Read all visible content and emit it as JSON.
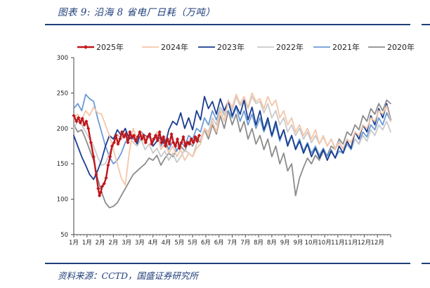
{
  "figure": {
    "title": "图表 9:  沿海 8 省电厂日耗（万吨）",
    "source": "资料来源：CCTD，国盛证券研究所"
  },
  "chart_data": {
    "type": "line",
    "title": "沿海8省电厂日耗（万吨）",
    "ylim": [
      50,
      300
    ],
    "yticks": [
      50,
      100,
      150,
      200,
      250,
      300
    ],
    "x_tick_labels": [
      "1月",
      "1月",
      "2月",
      "2月",
      "3月",
      "3月",
      "4月",
      "4月",
      "5月",
      "5月",
      "6月",
      "6月",
      "7月",
      "7月",
      "8月",
      "8月",
      "9月",
      "9月",
      "10月",
      "10月",
      "11月",
      "11月",
      "12月",
      "12月"
    ],
    "x_domain": [
      0,
      24
    ],
    "legend_position": "top",
    "series": [
      {
        "name": "2025年",
        "color": "#c0161c",
        "width": 2.4,
        "marker": "diamond",
        "x": [
          0.0,
          0.2,
          0.35,
          0.5,
          0.65,
          0.8,
          0.95,
          1.1,
          1.3,
          1.5,
          1.7,
          1.85,
          1.95,
          2.05,
          2.15,
          2.3,
          2.45,
          2.6,
          2.75,
          2.9,
          3.05,
          3.2,
          3.35,
          3.5,
          3.65,
          3.8,
          3.95,
          4.1,
          4.25,
          4.4,
          4.55,
          4.7,
          4.85,
          5.0,
          5.15,
          5.3,
          5.45,
          5.6,
          5.75,
          5.9,
          6.05,
          6.2,
          6.35,
          6.5,
          6.65,
          6.8,
          6.95,
          7.1,
          7.25,
          7.4,
          7.55,
          7.7,
          7.85,
          8.0,
          8.15,
          8.3,
          8.45,
          8.6,
          8.75,
          8.9,
          9.05,
          9.2,
          9.35,
          9.5
        ],
        "values": [
          218,
          210,
          215,
          208,
          214,
          205,
          210,
          200,
          180,
          160,
          135,
          115,
          105,
          110,
          118,
          122,
          130,
          148,
          160,
          175,
          180,
          190,
          178,
          185,
          195,
          188,
          192,
          180,
          195,
          187,
          190,
          182,
          188,
          195,
          185,
          190,
          180,
          188,
          192,
          178,
          185,
          190,
          183,
          195,
          180,
          188,
          175,
          185,
          178,
          192,
          180,
          175,
          185,
          172,
          180,
          188,
          175,
          180,
          178,
          185,
          180,
          188,
          182,
          190
        ]
      },
      {
        "name": "2024年",
        "color": "#f5c6a8",
        "width": 1.8,
        "x": [
          0,
          0.3,
          0.6,
          0.9,
          1.2,
          1.5,
          1.8,
          2.1,
          2.4,
          2.7,
          3.0,
          3.3,
          3.6,
          3.9,
          4.2,
          4.5,
          4.8,
          5.1,
          5.4,
          5.7,
          6.0,
          6.3,
          6.6,
          6.9,
          7.2,
          7.5,
          7.8,
          8.1,
          8.4,
          8.7,
          9.0,
          9.3,
          9.6,
          9.9,
          10.2,
          10.5,
          10.8,
          11.1,
          11.4,
          11.7,
          12.0,
          12.3,
          12.6,
          12.9,
          13.2,
          13.5,
          13.8,
          14.1,
          14.4,
          14.7,
          15.0,
          15.3,
          15.6,
          15.9,
          16.2,
          16.5,
          16.8,
          17.1,
          17.4,
          17.7,
          18.0,
          18.3,
          18.6,
          18.9,
          19.2,
          19.5,
          19.8,
          20.1,
          20.4,
          20.7,
          21.0,
          21.3,
          21.6,
          21.9,
          22.2,
          22.5,
          22.8,
          23.1,
          23.4,
          23.7,
          24.0
        ],
        "values": [
          215,
          220,
          212,
          225,
          218,
          230,
          222,
          220,
          205,
          190,
          170,
          150,
          130,
          120,
          165,
          200,
          185,
          195,
          178,
          190,
          182,
          195,
          170,
          180,
          165,
          175,
          160,
          170,
          155,
          165,
          160,
          172,
          178,
          200,
          190,
          210,
          195,
          225,
          210,
          240,
          230,
          248,
          235,
          245,
          230,
          250,
          238,
          242,
          228,
          245,
          232,
          240,
          215,
          225,
          205,
          215,
          195,
          205,
          190,
          200,
          185,
          198,
          178,
          190,
          175,
          185,
          170,
          180,
          172,
          185,
          180,
          195,
          190,
          205,
          200,
          215,
          210,
          225,
          220,
          232,
          210
        ]
      },
      {
        "name": "2023年",
        "color": "#1a3d8f",
        "width": 1.8,
        "x": [
          0,
          0.3,
          0.6,
          0.9,
          1.2,
          1.5,
          1.8,
          2.1,
          2.4,
          2.7,
          3.0,
          3.3,
          3.6,
          3.9,
          4.2,
          4.5,
          4.8,
          5.1,
          5.4,
          5.7,
          6.0,
          6.3,
          6.6,
          6.9,
          7.2,
          7.5,
          7.8,
          8.1,
          8.4,
          8.7,
          9.0,
          9.3,
          9.6,
          9.9,
          10.2,
          10.5,
          10.8,
          11.1,
          11.4,
          11.7,
          12.0,
          12.3,
          12.6,
          12.9,
          13.2,
          13.5,
          13.8,
          14.1,
          14.4,
          14.7,
          15.0,
          15.3,
          15.6,
          15.9,
          16.2,
          16.5,
          16.8,
          17.1,
          17.4,
          17.7,
          18.0,
          18.3,
          18.6,
          18.9,
          19.2,
          19.5,
          19.8,
          20.1,
          20.4,
          20.7,
          21.0,
          21.3,
          21.6,
          21.9,
          22.2,
          22.5,
          22.8,
          23.1,
          23.4,
          23.7,
          24.0
        ],
        "values": [
          190,
          175,
          160,
          148,
          135,
          128,
          140,
          155,
          175,
          190,
          185,
          198,
          190,
          200,
          185,
          190,
          178,
          195,
          180,
          192,
          175,
          182,
          188,
          175,
          198,
          210,
          205,
          222,
          200,
          215,
          198,
          225,
          212,
          245,
          228,
          238,
          220,
          242,
          225,
          238,
          218,
          232,
          220,
          240,
          212,
          230,
          205,
          225,
          198,
          215,
          190,
          210,
          185,
          198,
          175,
          190,
          170,
          182,
          165,
          178,
          160,
          172,
          158,
          170,
          155,
          168,
          158,
          175,
          165,
          182,
          172,
          195,
          185,
          205,
          195,
          218,
          205,
          228,
          215,
          235,
          212
        ]
      },
      {
        "name": "2022年",
        "color": "#c9c9c9",
        "width": 1.8,
        "x": [
          0,
          0.3,
          0.6,
          0.9,
          1.2,
          1.5,
          1.8,
          2.1,
          2.4,
          2.7,
          3.0,
          3.3,
          3.6,
          3.9,
          4.2,
          4.5,
          4.8,
          5.1,
          5.4,
          5.7,
          6.0,
          6.3,
          6.6,
          6.9,
          7.2,
          7.5,
          7.8,
          8.1,
          8.4,
          8.7,
          9.0,
          9.3,
          9.6,
          9.9,
          10.2,
          10.5,
          10.8,
          11.1,
          11.4,
          11.7,
          12.0,
          12.3,
          12.6,
          12.9,
          13.2,
          13.5,
          13.8,
          14.1,
          14.4,
          14.7,
          15.0,
          15.3,
          15.6,
          15.9,
          16.2,
          16.5,
          16.8,
          17.1,
          17.4,
          17.7,
          18.0,
          18.3,
          18.6,
          18.9,
          19.2,
          19.5,
          19.8,
          20.1,
          20.4,
          20.7,
          21.0,
          21.3,
          21.6,
          21.9,
          22.2,
          22.5,
          22.8,
          23.1,
          23.4,
          23.7,
          24.0
        ],
        "values": [
          200,
          210,
          205,
          195,
          185,
          175,
          160,
          148,
          150,
          165,
          180,
          192,
          185,
          195,
          188,
          180,
          175,
          185,
          170,
          178,
          165,
          172,
          160,
          168,
          155,
          165,
          152,
          160,
          170,
          165,
          160,
          178,
          185,
          200,
          195,
          215,
          205,
          230,
          218,
          240,
          225,
          245,
          232,
          240,
          228,
          245,
          235,
          238,
          222,
          235,
          215,
          225,
          205,
          215,
          195,
          205,
          190,
          200,
          185,
          195,
          180,
          190,
          178,
          188,
          175,
          185,
          172,
          182,
          170,
          180,
          172,
          185,
          178,
          190,
          182,
          198,
          190,
          205,
          198,
          210,
          195
        ]
      },
      {
        "name": "2021年",
        "color": "#6b9bd6",
        "width": 1.8,
        "x": [
          0,
          0.3,
          0.6,
          0.9,
          1.2,
          1.5,
          1.8,
          2.1,
          2.4,
          2.7,
          3.0,
          3.3,
          3.6,
          3.9,
          4.2,
          4.5,
          4.8,
          5.1,
          5.4,
          5.7,
          6.0,
          6.3,
          6.6,
          6.9,
          7.2,
          7.5,
          7.8,
          8.1,
          8.4,
          8.7,
          9.0,
          9.3,
          9.6,
          9.9,
          10.2,
          10.5,
          10.8,
          11.1,
          11.4,
          11.7,
          12.0,
          12.3,
          12.6,
          12.9,
          13.2,
          13.5,
          13.8,
          14.1,
          14.4,
          14.7,
          15.0,
          15.3,
          15.6,
          15.9,
          16.2,
          16.5,
          16.8,
          17.1,
          17.4,
          17.7,
          18.0,
          18.3,
          18.6,
          18.9,
          19.2,
          19.5,
          19.8,
          20.1,
          20.4,
          20.7,
          21.0,
          21.3,
          21.6,
          21.9,
          22.2,
          22.5,
          22.8,
          23.1,
          23.4,
          23.7,
          24.0
        ],
        "values": [
          228,
          235,
          225,
          248,
          242,
          238,
          215,
          195,
          175,
          160,
          150,
          155,
          165,
          180,
          190,
          185,
          182,
          195,
          190,
          188,
          180,
          192,
          175,
          185,
          170,
          182,
          168,
          180,
          175,
          190,
          185,
          200,
          195,
          215,
          205,
          225,
          212,
          230,
          220,
          225,
          215,
          230,
          210,
          225,
          205,
          220,
          200,
          215,
          195,
          210,
          188,
          205,
          182,
          198,
          178,
          190,
          172,
          185,
          168,
          180,
          165,
          175,
          162,
          172,
          160,
          170,
          158,
          168,
          165,
          178,
          170,
          185,
          178,
          195,
          188,
          205,
          198,
          215,
          205,
          222,
          210
        ]
      },
      {
        "name": "2020年",
        "color": "#8c8c8c",
        "width": 1.8,
        "x": [
          0,
          0.3,
          0.6,
          0.9,
          1.2,
          1.5,
          1.8,
          2.1,
          2.4,
          2.7,
          3.0,
          3.3,
          3.6,
          3.9,
          4.2,
          4.5,
          4.8,
          5.1,
          5.4,
          5.7,
          6.0,
          6.3,
          6.6,
          6.9,
          7.2,
          7.5,
          7.8,
          8.1,
          8.4,
          8.7,
          9.0,
          9.3,
          9.6,
          9.9,
          10.2,
          10.5,
          10.8,
          11.1,
          11.4,
          11.7,
          12.0,
          12.3,
          12.6,
          12.9,
          13.2,
          13.5,
          13.8,
          14.1,
          14.4,
          14.7,
          15.0,
          15.3,
          15.6,
          15.9,
          16.2,
          16.5,
          16.8,
          17.1,
          17.4,
          17.7,
          18.0,
          18.3,
          18.6,
          18.9,
          19.2,
          19.5,
          19.8,
          20.1,
          20.4,
          20.7,
          21.0,
          21.3,
          21.6,
          21.9,
          22.2,
          22.5,
          22.8,
          23.1,
          23.4,
          23.7,
          24.0
        ],
        "values": [
          205,
          195,
          198,
          185,
          170,
          155,
          130,
          110,
          95,
          88,
          90,
          95,
          105,
          115,
          125,
          135,
          140,
          145,
          150,
          158,
          155,
          162,
          148,
          158,
          165,
          160,
          170,
          175,
          168,
          182,
          175,
          188,
          180,
          198,
          185,
          205,
          192,
          218,
          200,
          225,
          205,
          220,
          195,
          210,
          185,
          200,
          178,
          190,
          170,
          185,
          160,
          175,
          150,
          165,
          140,
          150,
          105,
          130,
          145,
          158,
          150,
          162,
          155,
          168,
          162,
          175,
          170,
          185,
          178,
          195,
          190,
          205,
          198,
          218,
          210,
          228,
          220,
          235,
          225,
          240,
          235
        ]
      }
    ]
  }
}
